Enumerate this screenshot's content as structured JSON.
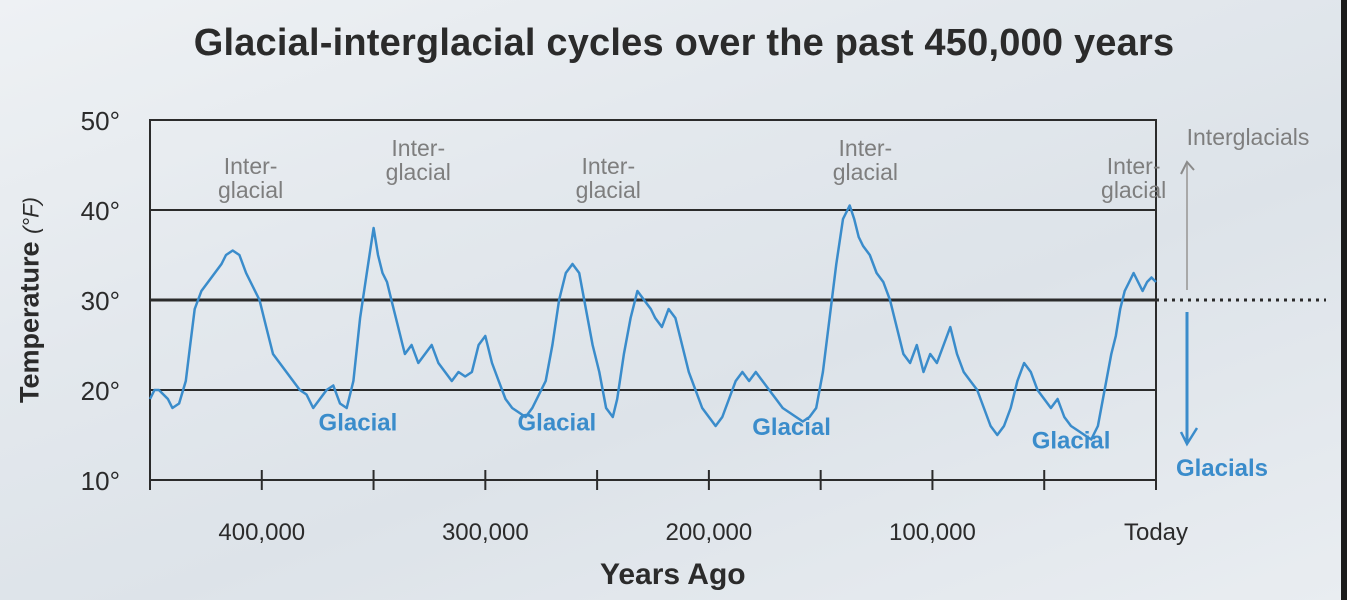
{
  "chart_data": {
    "type": "line",
    "title": "Glacial-interglacial cycles over the past 450,000 years",
    "xlabel": "Years Ago",
    "ylabel": "Temperature",
    "ylabel_unit": "(°F)",
    "xlim": [
      450000,
      0
    ],
    "ylim": [
      10,
      50
    ],
    "x_tick_labels": [
      "400,000",
      "300,000",
      "200,000",
      "100,000",
      "Today"
    ],
    "x_ticks": [
      450000,
      400000,
      350000,
      300000,
      250000,
      200000,
      150000,
      100000,
      50000,
      0
    ],
    "x_tick_label_values": [
      400000,
      300000,
      200000,
      100000,
      0
    ],
    "y_ticks": [
      10,
      20,
      30,
      40,
      50
    ],
    "y_tick_labels": [
      "10°",
      "20°",
      "30°",
      "40°",
      "50°"
    ],
    "gridlines_y": [
      20,
      30,
      40
    ],
    "line_color": "#3a8ccb",
    "series": [
      {
        "x": [
          450000,
          448000,
          446000,
          444000,
          442000,
          440000,
          437000,
          434000,
          432000,
          430000,
          427000,
          424000,
          421000,
          418000,
          416000,
          413000,
          410000,
          407000,
          404000,
          401000,
          398000,
          395000,
          392000,
          389000,
          386000,
          383000,
          380000,
          377000,
          374000,
          371000,
          368000,
          365000,
          362000,
          359000,
          356000,
          353000,
          350000,
          348000,
          346000,
          344000,
          342000,
          340000,
          338000,
          337000,
          336000,
          333000,
          330000,
          327000,
          324000,
          321000,
          318000,
          315000,
          312000,
          309000,
          306000,
          303000,
          300000,
          297000,
          294000,
          291000,
          288000,
          285000,
          282000,
          279000,
          276000,
          273000,
          270000,
          267000,
          264000,
          261000,
          258000,
          255000,
          252000,
          249000,
          246000,
          243000,
          241000,
          238000,
          235000,
          232000,
          229000,
          226000,
          224000,
          221000,
          218000,
          215000,
          212000,
          209000,
          206000,
          203000,
          200000,
          197000,
          194000,
          191000,
          188000,
          185000,
          182000,
          179000,
          176000,
          173000,
          170000,
          167000,
          164000,
          161000,
          158000,
          155000,
          152000,
          149000,
          146000,
          143000,
          140000,
          137000,
          135000,
          133000,
          131000,
          128000,
          125000,
          122000,
          119000,
          116000,
          113000,
          110000,
          107000,
          104000,
          101000,
          98000,
          95000,
          92000,
          89000,
          86000,
          83000,
          80000,
          77000,
          74000,
          71000,
          68000,
          65000,
          62000,
          59000,
          56000,
          53000,
          50000,
          47000,
          44000,
          41000,
          38000,
          35000,
          32000,
          29000,
          26000,
          23000,
          20000,
          18000,
          16000,
          14000,
          12000,
          10000,
          8000,
          6000,
          4000,
          2000,
          0
        ],
        "y": [
          19,
          20,
          20,
          19.5,
          19,
          18,
          18.5,
          21,
          25,
          29,
          31,
          32,
          33,
          34,
          35,
          35.5,
          35,
          33,
          31.5,
          30,
          27,
          24,
          23,
          22,
          21,
          20,
          19.5,
          18,
          19,
          20,
          20.5,
          18.5,
          18,
          21,
          28,
          33,
          38,
          35,
          33,
          32,
          30,
          28,
          26,
          25,
          24,
          25,
          23,
          24,
          25,
          23,
          22,
          21,
          22,
          21.5,
          22,
          25,
          26,
          23,
          21,
          19,
          18,
          17.5,
          17,
          18,
          19.5,
          21,
          25,
          30,
          33,
          34,
          33,
          29,
          25,
          22,
          18,
          17,
          19,
          24,
          28,
          31,
          30,
          29,
          28,
          27,
          29,
          28,
          25,
          22,
          20,
          18,
          17,
          16,
          17,
          19,
          21,
          22,
          21,
          22,
          21,
          20,
          19,
          18,
          17.5,
          17,
          16.5,
          17,
          18,
          22,
          28,
          34,
          39,
          40.5,
          39,
          37,
          36,
          35,
          33,
          32,
          30,
          27,
          24,
          23,
          25,
          22,
          24,
          23,
          25,
          27,
          24,
          22,
          21,
          20,
          18,
          16,
          15,
          16,
          18,
          21,
          23,
          22,
          20,
          19,
          18,
          19,
          17,
          16,
          15.5,
          15,
          14.5,
          16,
          20,
          24,
          26,
          29,
          31,
          32,
          33,
          32,
          31,
          32,
          32.5,
          32
        ]
      }
    ],
    "annotations": {
      "interglacial_text": [
        {
          "lines": [
            "Inter-",
            "glacial"
          ],
          "at_x": 405000,
          "at_y": 44
        },
        {
          "lines": [
            "Inter-",
            "glacial"
          ],
          "at_x": 330000,
          "at_y": 46
        },
        {
          "lines": [
            "Inter-",
            "glacial"
          ],
          "at_x": 245000,
          "at_y": 44
        },
        {
          "lines": [
            "Inter-",
            "glacial"
          ],
          "at_x": 130000,
          "at_y": 46
        },
        {
          "lines": [
            "Inter-",
            "glacial"
          ],
          "at_x": 10000,
          "at_y": 44
        }
      ],
      "glacial_text": [
        {
          "text": "Glacial",
          "at_x": 357000,
          "at_y": 15.5
        },
        {
          "text": "Glacial",
          "at_x": 268000,
          "at_y": 15.5
        },
        {
          "text": "Glacial",
          "at_x": 163000,
          "at_y": 15
        },
        {
          "text": "Glacial",
          "at_x": 38000,
          "at_y": 13.5
        }
      ],
      "side_legend": {
        "interglacials": "Interglacials",
        "glacials": "Glacials"
      },
      "interglacial_color": "#7e7e7e",
      "glacial_color": "#3a8ccb"
    }
  }
}
